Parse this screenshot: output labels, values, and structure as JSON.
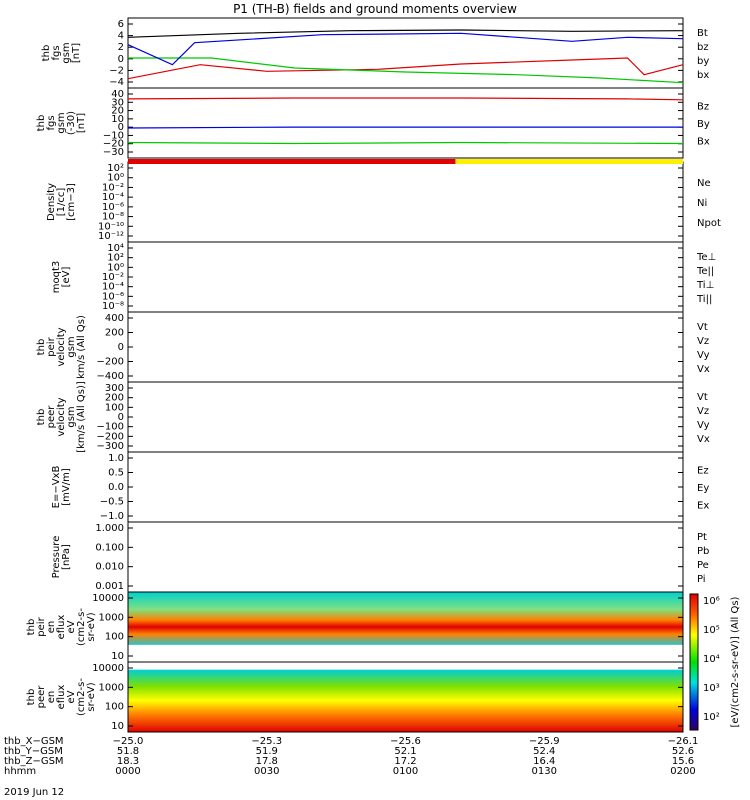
{
  "title": "P1 (TH-B) fields and ground moments overview",
  "date": "2019 Jun 12",
  "chart_data": [
    {
      "type": "line",
      "ylabel": [
        "thb",
        "fgs",
        "gsm",
        "[nT]"
      ],
      "yticks": [
        "6",
        "4",
        "2",
        "0",
        "−2",
        "−4"
      ],
      "legend": [
        {
          "name": "Bt",
          "color": "#000000"
        },
        {
          "name": "bz",
          "color": "#e00000"
        },
        {
          "name": "by",
          "color": "#00c800"
        },
        {
          "name": "bx",
          "color": "#0000e0"
        }
      ],
      "series": [
        {
          "name": "Bt",
          "color": "#000000",
          "points": [
            [
              0,
              3.6
            ],
            [
              0.2,
              4.2
            ],
            [
              0.4,
              4.6
            ],
            [
              0.6,
              4.7
            ],
            [
              0.8,
              4.5
            ],
            [
              1,
              4.6
            ]
          ]
        },
        {
          "name": "bz",
          "color": "#e00000",
          "points": [
            [
              0,
              -2.6
            ],
            [
              0.13,
              -0.5
            ],
            [
              0.25,
              -1.5
            ],
            [
              0.45,
              -1.2
            ],
            [
              0.6,
              -0.4
            ],
            [
              0.8,
              0.2
            ],
            [
              0.9,
              0.5
            ],
            [
              0.93,
              -2.0
            ],
            [
              1,
              -0.5
            ]
          ]
        },
        {
          "name": "by",
          "color": "#00c800",
          "points": [
            [
              0,
              0.5
            ],
            [
              0.15,
              0.5
            ],
            [
              0.3,
              -1.0
            ],
            [
              0.5,
              -1.6
            ],
            [
              0.7,
              -2.0
            ],
            [
              0.85,
              -2.5
            ],
            [
              1,
              -3.2
            ]
          ]
        },
        {
          "name": "bx",
          "color": "#0000e0",
          "points": [
            [
              0,
              2.5
            ],
            [
              0.08,
              -0.5
            ],
            [
              0.12,
              2.8
            ],
            [
              0.35,
              4.0
            ],
            [
              0.6,
              4.2
            ],
            [
              0.8,
              3.0
            ],
            [
              0.9,
              3.6
            ],
            [
              1,
              3.4
            ]
          ]
        }
      ]
    },
    {
      "type": "line",
      "ylabel": [
        "thb",
        "fgs",
        "gsm",
        "(-30)",
        "[nT]"
      ],
      "yticks": [
        "40",
        "30",
        "20",
        "10",
        "0",
        "−10",
        "−20",
        "−30"
      ],
      "legend": [
        {
          "name": "Bz",
          "color": "#e00000"
        },
        {
          "name": "By",
          "color": "#00c800"
        },
        {
          "name": "Bx",
          "color": "#0000e0"
        }
      ],
      "series": [
        {
          "name": "Bz",
          "color": "#e00000",
          "points": [
            [
              0,
              30
            ],
            [
              0.3,
              31
            ],
            [
              0.6,
              31
            ],
            [
              0.9,
              30
            ],
            [
              1,
              29
            ]
          ]
        },
        {
          "name": "By",
          "color": "#00c800",
          "points": [
            [
              0,
              -18
            ],
            [
              0.3,
              -19
            ],
            [
              0.6,
              -18
            ],
            [
              1,
              -19
            ]
          ]
        },
        {
          "name": "Bx",
          "color": "#0000e0",
          "points": [
            [
              0,
              -2
            ],
            [
              0.3,
              -1
            ],
            [
              0.6,
              -1
            ],
            [
              1,
              -1
            ]
          ]
        }
      ]
    },
    {
      "type": "line",
      "ylabel": [
        "Density",
        "[1/cc]",
        "[cm−3]"
      ],
      "yticks": [
        "10²",
        "10⁰",
        "10⁻²",
        "10⁻⁴",
        "10⁻⁶",
        "10⁻⁸",
        "10⁻¹⁰",
        "10⁻¹²"
      ],
      "legend": [
        {
          "name": "Ne",
          "color": "#e00000"
        },
        {
          "name": "Ni",
          "color": "#000000"
        },
        {
          "name": "Npot",
          "color": "#0000e0"
        }
      ]
    },
    {
      "type": "line",
      "ylabel": [
        "moqt3",
        "[eV]"
      ],
      "yticks": [
        "10⁴",
        "10²",
        "10⁰",
        "10⁻²",
        "10⁻⁴",
        "10⁻⁶",
        "10⁻⁸"
      ],
      "legend": [
        {
          "name": "Te⊥",
          "color": "#e00000"
        },
        {
          "name": "Te||",
          "color": "#000000"
        },
        {
          "name": "Ti⊥",
          "color": "#0000e0"
        },
        {
          "name": "Ti||",
          "color": "#00c800"
        }
      ]
    },
    {
      "type": "line",
      "ylabel": [
        "thb",
        "peir",
        "velocity",
        "gsm",
        "km/s (All Qs)"
      ],
      "yticks": [
        "400",
        "200",
        "0",
        "−200",
        "−400"
      ],
      "legend": [
        {
          "name": "Vt",
          "color": "#000000"
        },
        {
          "name": "Vz",
          "color": "#e00000"
        },
        {
          "name": "Vy",
          "color": "#00c800"
        },
        {
          "name": "Vx",
          "color": "#0000e0"
        }
      ]
    },
    {
      "type": "line",
      "ylabel": [
        "thb",
        "peer",
        "velocity",
        "gsm",
        "[km/s (All Qs)]"
      ],
      "yticks": [
        "300",
        "200",
        "100",
        "0",
        "−100",
        "−200",
        "−300"
      ],
      "legend": [
        {
          "name": "Vt",
          "color": "#000000"
        },
        {
          "name": "Vz",
          "color": "#e00000"
        },
        {
          "name": "Vy",
          "color": "#00c800"
        },
        {
          "name": "Vx",
          "color": "#0000e0"
        }
      ]
    },
    {
      "type": "line",
      "ylabel": [
        "E=−VxB",
        "[mV/m]"
      ],
      "yticks": [
        "1.0",
        "0.5",
        "0.0",
        "−0.5",
        "−1.0"
      ],
      "legend": [
        {
          "name": "Ez",
          "color": "#e00000"
        },
        {
          "name": "Ey",
          "color": "#00c800"
        },
        {
          "name": "Ex",
          "color": "#0000e0"
        }
      ]
    },
    {
      "type": "line",
      "ylabel": [
        "Pressure",
        "[nPa]"
      ],
      "yticks": [
        "1.000",
        "0.100",
        "0.010",
        "0.001"
      ],
      "legend": [
        {
          "name": "Pt",
          "color": "#000000"
        },
        {
          "name": "Pb",
          "color": "#e00000"
        },
        {
          "name": "Pe",
          "color": "#00c800"
        },
        {
          "name": "Pi",
          "color": "#0000e0"
        }
      ]
    },
    {
      "type": "heatmap",
      "ylabel": [
        "thb",
        "peir",
        "en",
        "eflux",
        "eV",
        "(cm2-s-",
        "sr-eV)"
      ],
      "yticks": [
        "10000",
        "1000",
        "100",
        "10"
      ]
    },
    {
      "type": "heatmap",
      "ylabel": [
        "thb",
        "peer",
        "en",
        "eflux",
        "eV",
        "(cm2-s-",
        "sr-eV)"
      ],
      "yticks": [
        "10000",
        "1000",
        "100",
        "10"
      ]
    }
  ],
  "colorbar": {
    "ticks": [
      "10⁶",
      "10⁵",
      "10⁴",
      "10³",
      "10²"
    ],
    "label": "[eV/(cm2-s-sr-eV)] (All Qs)"
  },
  "xaxis": {
    "row_labels": [
      "thb_X−GSM",
      "thb_Y−GSM",
      "thb_Z−GSM",
      "hhmm"
    ],
    "columns": [
      {
        "x": "−25.0",
        "y": "51.8",
        "z": "18.3",
        "t": "0000"
      },
      {
        "x": "−25.3",
        "y": "51.9",
        "z": "17.8",
        "t": "0030"
      },
      {
        "x": "−25.6",
        "y": "52.1",
        "z": "17.2",
        "t": "0100"
      },
      {
        "x": "−25.9",
        "y": "52.4",
        "z": "16.4",
        "t": "0130"
      },
      {
        "x": "−26.1",
        "y": "52.6",
        "z": "15.6",
        "t": "0200"
      }
    ]
  }
}
